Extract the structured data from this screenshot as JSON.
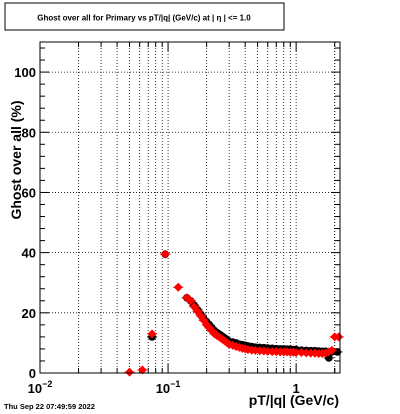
{
  "title": "Ghost over all for Primary vs pT/|q| (GeV/c) at |  η  | <= 1.0",
  "timestamp": "Thu Sep 22 07:49:59 2022",
  "chart_data": {
    "type": "scatter",
    "title": "Ghost over all for Primary vs pT/|q| (GeV/c) at |  η  | <= 1.0",
    "xlabel": "pT/|q| (GeV/c)",
    "ylabel": "Ghost over all (%)",
    "x_scale": "log",
    "xlim": [
      0.01,
      2.2
    ],
    "ylim": [
      0,
      110
    ],
    "grid": true,
    "x_ticks": [
      {
        "value": 0.01,
        "base": "10",
        "exp": "−2"
      },
      {
        "value": 0.1,
        "base": "10",
        "exp": "−1"
      },
      {
        "value": 1,
        "base": "1",
        "exp": ""
      }
    ],
    "y_ticks": [
      "0",
      "20",
      "40",
      "60",
      "80",
      "100"
    ],
    "series": [
      {
        "color": "#000000",
        "marker": "circle",
        "x": [
          0.075,
          0.095,
          0.14,
          0.15,
          0.16,
          0.17,
          0.18,
          0.19,
          0.2,
          0.21,
          0.22,
          0.23,
          0.24,
          0.25,
          0.26,
          0.27,
          0.28,
          0.29,
          0.3,
          0.32,
          0.34,
          0.36,
          0.38,
          0.4,
          0.42,
          0.45,
          0.48,
          0.52,
          0.56,
          0.6,
          0.65,
          0.7,
          0.75,
          0.8,
          0.85,
          0.9,
          0.95,
          1.0,
          1.1,
          1.2,
          1.3,
          1.4,
          1.5,
          1.6,
          1.7,
          1.8,
          1.9,
          2.1
        ],
        "y": [
          12,
          39.5,
          25,
          24,
          22.5,
          21,
          19.5,
          18,
          17,
          16,
          15,
          14,
          13.5,
          13,
          12.5,
          12,
          11.5,
          11,
          10.5,
          10.3,
          10,
          9.6,
          9.4,
          9.2,
          9,
          8.8,
          8.6,
          8.5,
          8.4,
          8.3,
          8.2,
          8.1,
          8,
          8,
          7.9,
          7.9,
          7.8,
          7.8,
          7.6,
          7.5,
          7.4,
          7.4,
          7.3,
          7.2,
          7.2,
          5,
          7,
          7
        ]
      },
      {
        "color": "#ff0000",
        "marker": "diamond",
        "x": [
          0.05,
          0.063,
          0.075,
          0.095,
          0.12,
          0.14,
          0.15,
          0.16,
          0.17,
          0.18,
          0.19,
          0.2,
          0.21,
          0.22,
          0.23,
          0.24,
          0.25,
          0.26,
          0.27,
          0.28,
          0.29,
          0.3,
          0.32,
          0.34,
          0.36,
          0.38,
          0.4,
          0.42,
          0.45,
          0.48,
          0.52,
          0.56,
          0.6,
          0.65,
          0.7,
          0.75,
          0.8,
          0.85,
          0.9,
          0.95,
          1.0,
          1.1,
          1.2,
          1.3,
          1.4,
          1.5,
          1.6,
          1.7,
          1.8,
          1.9,
          2.0,
          2.15
        ],
        "y": [
          0.3,
          1,
          13,
          39.5,
          28.5,
          25,
          24,
          22,
          20.5,
          19,
          17.5,
          16,
          15,
          14,
          13,
          12.5,
          12,
          11.5,
          11,
          10.5,
          10,
          9.5,
          9.2,
          8.8,
          8.5,
          8.2,
          8,
          7.8,
          7.6,
          7.5,
          7.4,
          7.3,
          7.2,
          7.1,
          7.1,
          7,
          7,
          7,
          6.9,
          6.9,
          6.8,
          6.8,
          6.7,
          6.6,
          6.6,
          6.5,
          6.5,
          6.6,
          7,
          7.5,
          12,
          12
        ]
      }
    ]
  }
}
